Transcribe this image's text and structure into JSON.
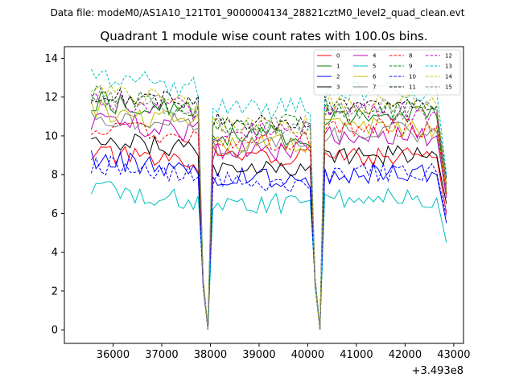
{
  "chart_data": {
    "type": "line",
    "suptitle": "Data file: modeM0/AS1A10_121T01_9000004134_28821cztM0_level2_quad_clean.evt",
    "title": "Quadrant 1 module wise count rates with 100.0s bins.",
    "xlabel": "",
    "ylabel": "",
    "x_offset_label": "+3.493e8",
    "xlim": [
      35000,
      43200
    ],
    "ylim": [
      -0.7,
      14.6
    ],
    "xticks": [
      36000,
      37000,
      38000,
      39000,
      40000,
      41000,
      42000,
      43000
    ],
    "xtick_labels": [
      "36000",
      "37000",
      "38000",
      "39000",
      "40000",
      "41000",
      "42000",
      "43000"
    ],
    "yticks": [
      0,
      2,
      4,
      6,
      8,
      10,
      12,
      14
    ],
    "ytick_labels": [
      "0",
      "2",
      "4",
      "6",
      "8",
      "10",
      "12",
      "14"
    ],
    "legend_position": "upper-right",
    "legend_ncol": 4,
    "segments": [
      {
        "x_start": 35550,
        "x_end": 37750,
        "step": 100
      },
      {
        "x_start": 38050,
        "x_end": 40050,
        "step": 100
      },
      {
        "x_start": 40350,
        "x_end": 42850,
        "step": 100
      }
    ],
    "series": [
      {
        "name": "0",
        "color": "#ff0000",
        "dashed": false,
        "levels": [
          8.8,
          9.0,
          8.9
        ],
        "end": 6.0
      },
      {
        "name": "1",
        "color": "#008000",
        "dashed": false,
        "levels": [
          11.5,
          10.0,
          11.0
        ],
        "end": 7.0
      },
      {
        "name": "2",
        "color": "#0000ff",
        "dashed": false,
        "levels": [
          8.5,
          7.8,
          8.0
        ],
        "end": 5.5
      },
      {
        "name": "3",
        "color": "#000000",
        "dashed": false,
        "levels": [
          9.5,
          8.3,
          9.0
        ],
        "end": 6.5
      },
      {
        "name": "4",
        "color": "#bf00bf",
        "dashed": false,
        "levels": [
          10.5,
          9.2,
          10.0
        ],
        "end": 6.8
      },
      {
        "name": "5",
        "color": "#00bfbf",
        "dashed": false,
        "levels": [
          7.0,
          6.5,
          6.8
        ],
        "end": 4.5
      },
      {
        "name": "6",
        "color": "#bfbf00",
        "dashed": false,
        "levels": [
          11.0,
          9.6,
          10.4
        ],
        "end": 7.2
      },
      {
        "name": "7",
        "color": "#808080",
        "dashed": false,
        "levels": [
          10.8,
          9.4,
          10.2
        ],
        "end": 7.0
      },
      {
        "name": "8",
        "color": "#ff0000",
        "dashed": true,
        "levels": [
          10.2,
          9.8,
          10.5
        ],
        "end": 7.0
      },
      {
        "name": "9",
        "color": "#008000",
        "dashed": true,
        "levels": [
          11.8,
          10.6,
          11.3
        ],
        "end": 7.5
      },
      {
        "name": "10",
        "color": "#0000ff",
        "dashed": true,
        "levels": [
          8.3,
          7.6,
          8.1
        ],
        "end": 5.8
      },
      {
        "name": "11",
        "color": "#000000",
        "dashed": true,
        "levels": [
          12.0,
          10.8,
          11.5
        ],
        "end": 7.8
      },
      {
        "name": "12",
        "color": "#bf00bf",
        "dashed": true,
        "levels": [
          11.6,
          10.3,
          11.2
        ],
        "end": 7.4
      },
      {
        "name": "13",
        "color": "#00bfbf",
        "dashed": true,
        "levels": [
          12.8,
          11.4,
          12.3
        ],
        "end": 8.0
      },
      {
        "name": "14",
        "color": "#bfbf00",
        "dashed": true,
        "levels": [
          12.0,
          10.5,
          11.6
        ],
        "end": 7.5
      },
      {
        "name": "15",
        "color": "#808080",
        "dashed": true,
        "levels": [
          11.7,
          10.4,
          11.4
        ],
        "end": 7.3
      }
    ]
  }
}
